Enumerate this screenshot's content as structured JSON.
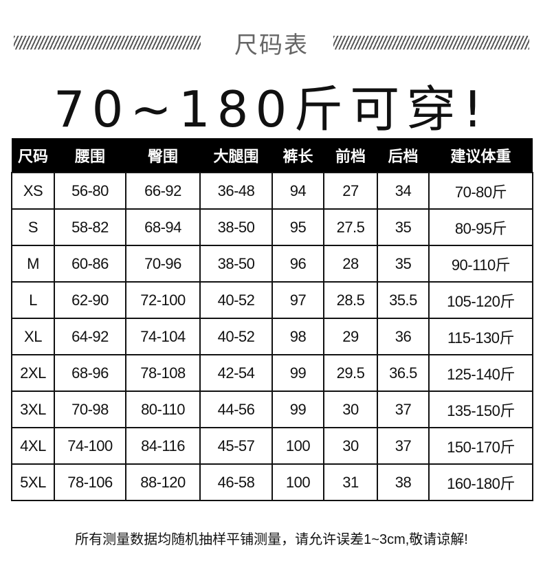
{
  "header": {
    "subtitle": "尺码表",
    "headline": "70~180斤可穿!"
  },
  "table": {
    "columns": [
      "尺码",
      "腰围",
      "臀围",
      "大腿围",
      "裤长",
      "前档",
      "后档",
      "建议体重"
    ],
    "rows": [
      [
        "XS",
        "56-80",
        "66-92",
        "36-48",
        "94",
        "27",
        "34",
        "70-80斤"
      ],
      [
        "S",
        "58-82",
        "68-94",
        "38-50",
        "95",
        "27.5",
        "35",
        "80-95斤"
      ],
      [
        "M",
        "60-86",
        "70-96",
        "38-50",
        "96",
        "28",
        "35",
        "90-110斤"
      ],
      [
        "L",
        "62-90",
        "72-100",
        "40-52",
        "97",
        "28.5",
        "35.5",
        "105-120斤"
      ],
      [
        "XL",
        "64-92",
        "74-104",
        "40-52",
        "98",
        "29",
        "36",
        "115-130斤"
      ],
      [
        "2XL",
        "68-96",
        "78-108",
        "42-54",
        "99",
        "29.5",
        "36.5",
        "125-140斤"
      ],
      [
        "3XL",
        "70-98",
        "80-110",
        "44-56",
        "99",
        "30",
        "37",
        "135-150斤"
      ],
      [
        "4XL",
        "74-100",
        "84-116",
        "45-57",
        "100",
        "30",
        "37",
        "150-170斤"
      ],
      [
        "5XL",
        "78-106",
        "88-120",
        "46-58",
        "100",
        "31",
        "38",
        "160-180斤"
      ]
    ]
  },
  "footer": {
    "note": "所有测量数据均随机抽样平铺测量，请允许误差1~3cm,敬请谅解!"
  }
}
